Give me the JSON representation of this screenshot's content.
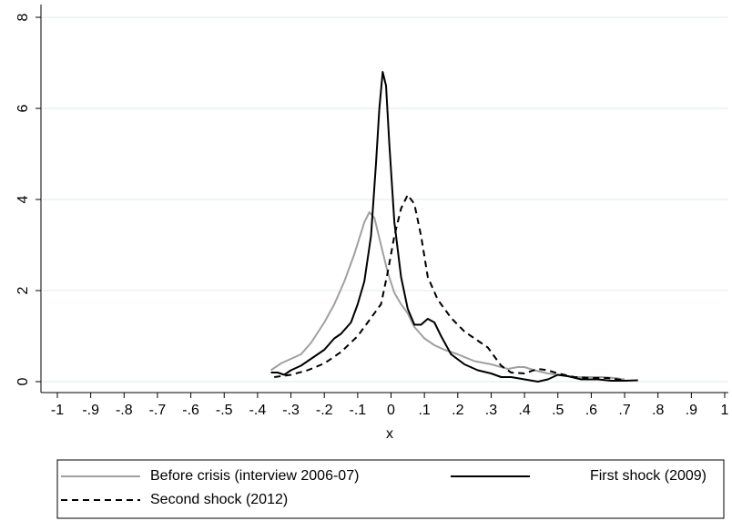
{
  "chart_data": {
    "type": "line",
    "x_label": "x",
    "xlim": [
      -1,
      1
    ],
    "ylim": [
      0,
      8
    ],
    "xticks": [
      -1,
      {
        "value": -0.9,
        "label": "-.9"
      },
      {
        "value": -0.8,
        "label": "-.8"
      },
      {
        "value": -0.7,
        "label": "-.7"
      },
      {
        "value": -0.6,
        "label": "-.6"
      },
      {
        "value": -0.5,
        "label": "-.5"
      },
      {
        "value": -0.4,
        "label": "-.4"
      },
      {
        "value": -0.3,
        "label": "-.3"
      },
      {
        "value": -0.2,
        "label": "-.2"
      },
      {
        "value": -0.1,
        "label": "-.1"
      },
      0,
      {
        "value": 0.1,
        "label": ".1"
      },
      {
        "value": 0.2,
        "label": ".2"
      },
      {
        "value": 0.3,
        "label": ".3"
      },
      {
        "value": 0.4,
        "label": ".4"
      },
      {
        "value": 0.5,
        "label": ".5"
      },
      {
        "value": 0.6,
        "label": ".6"
      },
      {
        "value": 0.7,
        "label": ".7"
      },
      {
        "value": 0.8,
        "label": ".8"
      },
      {
        "value": 0.9,
        "label": ".9"
      },
      1
    ],
    "yticks": [
      0,
      2,
      4,
      6,
      8
    ],
    "grid": true,
    "legend_position": "bottom",
    "series": [
      {
        "name": "Before crisis (interview 2006-07)",
        "color": "#a0a0a0",
        "style": "solid",
        "x": [
          -0.36,
          -0.33,
          -0.3,
          -0.27,
          -0.24,
          -0.2,
          -0.17,
          -0.14,
          -0.11,
          -0.08,
          -0.065,
          -0.05,
          -0.03,
          -0.01,
          0.01,
          0.03,
          0.05,
          0.07,
          0.1,
          0.13,
          0.16,
          0.2,
          0.25,
          0.3,
          0.35,
          0.38,
          0.4,
          0.43,
          0.47,
          0.5,
          0.55,
          0.6,
          0.63,
          0.67,
          0.7
        ],
        "values": [
          0.25,
          0.4,
          0.5,
          0.6,
          0.85,
          1.3,
          1.7,
          2.2,
          2.8,
          3.5,
          3.72,
          3.6,
          3.0,
          2.4,
          1.95,
          1.7,
          1.5,
          1.2,
          0.95,
          0.8,
          0.7,
          0.6,
          0.45,
          0.38,
          0.28,
          0.32,
          0.32,
          0.25,
          0.18,
          0.15,
          0.1,
          0.1,
          0.1,
          0.08,
          0.05
        ]
      },
      {
        "name": "First shock (2009)",
        "color": "#000000",
        "style": "solid",
        "x": [
          -0.36,
          -0.34,
          -0.32,
          -0.3,
          -0.27,
          -0.24,
          -0.2,
          -0.17,
          -0.15,
          -0.12,
          -0.1,
          -0.08,
          -0.06,
          -0.045,
          -0.035,
          -0.025,
          -0.015,
          -0.005,
          0.01,
          0.03,
          0.05,
          0.07,
          0.09,
          0.11,
          0.13,
          0.15,
          0.18,
          0.22,
          0.26,
          0.3,
          0.33,
          0.36,
          0.4,
          0.44,
          0.47,
          0.5,
          0.53,
          0.57,
          0.62,
          0.66,
          0.7,
          0.74
        ],
        "values": [
          0.2,
          0.2,
          0.15,
          0.25,
          0.35,
          0.5,
          0.7,
          0.95,
          1.05,
          1.3,
          1.7,
          2.2,
          3.2,
          4.8,
          6.0,
          6.8,
          6.5,
          5.2,
          3.5,
          2.3,
          1.6,
          1.25,
          1.25,
          1.38,
          1.3,
          1.0,
          0.6,
          0.38,
          0.25,
          0.18,
          0.1,
          0.1,
          0.05,
          0.0,
          0.05,
          0.15,
          0.12,
          0.05,
          0.05,
          0.02,
          0.02,
          0.03
        ]
      },
      {
        "name": "Second shock (2012)",
        "color": "#000000",
        "style": "dashed",
        "x": [
          -0.35,
          -0.3,
          -0.25,
          -0.2,
          -0.15,
          -0.1,
          -0.06,
          -0.03,
          -0.01,
          0.01,
          0.03,
          0.05,
          0.07,
          0.09,
          0.11,
          0.14,
          0.18,
          0.22,
          0.26,
          0.29,
          0.31,
          0.33,
          0.36,
          0.4,
          0.44,
          0.47,
          0.5,
          0.55,
          0.6,
          0.65,
          0.7
        ],
        "values": [
          0.1,
          0.15,
          0.25,
          0.4,
          0.65,
          1.0,
          1.4,
          1.7,
          2.4,
          3.2,
          3.8,
          4.1,
          3.9,
          3.2,
          2.3,
          1.8,
          1.4,
          1.1,
          0.9,
          0.75,
          0.55,
          0.35,
          0.2,
          0.18,
          0.28,
          0.25,
          0.18,
          0.1,
          0.08,
          0.08,
          0.03
        ]
      }
    ]
  }
}
